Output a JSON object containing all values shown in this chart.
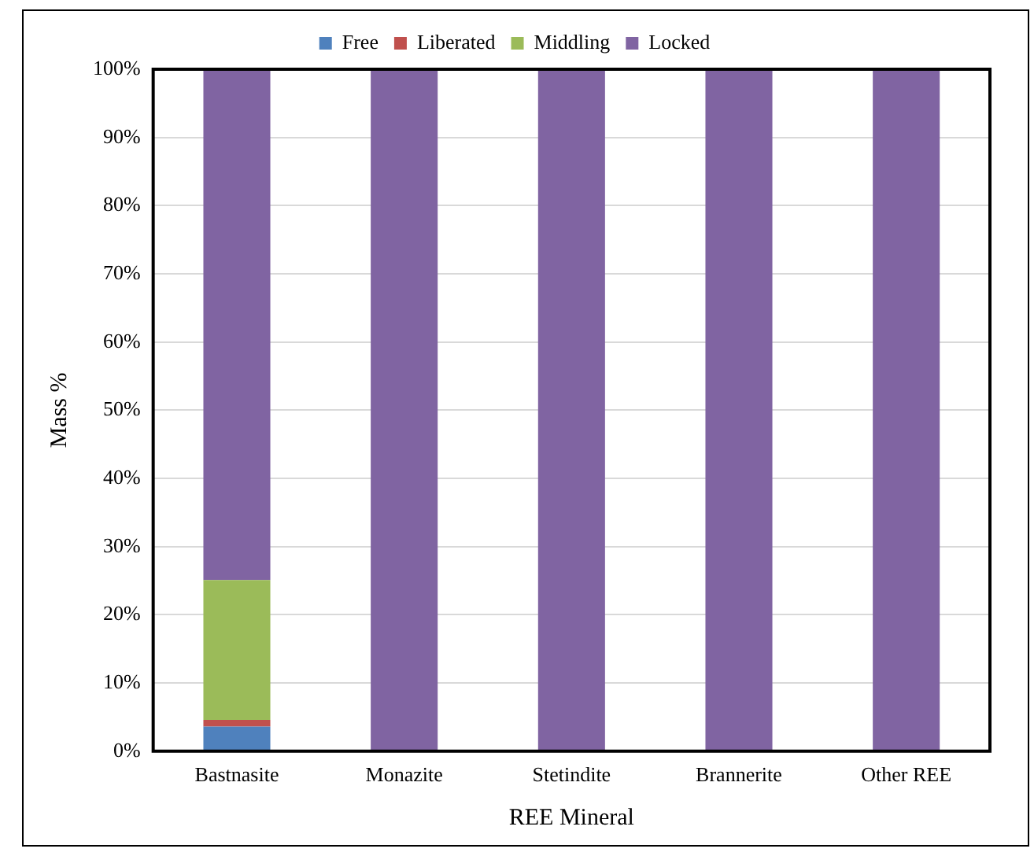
{
  "chart_data": {
    "type": "bar",
    "stacked": true,
    "xlabel": "REE Mineral",
    "ylabel": "Mass %",
    "categories": [
      "Bastnasite",
      "Monazite",
      "Stetindite",
      "Brannerite",
      "Other REE"
    ],
    "series": [
      {
        "name": "Free",
        "color": "#4f81bd",
        "values": [
          3.6,
          0,
          0,
          0,
          0
        ]
      },
      {
        "name": "Liberated",
        "color": "#c0504d",
        "values": [
          1,
          0,
          0,
          0,
          0
        ]
      },
      {
        "name": "Middling",
        "color": "#9bbb59",
        "values": [
          20.5,
          0,
          0,
          0,
          0
        ]
      },
      {
        "name": "Locked",
        "color": "#8064a2",
        "values": [
          74.9,
          100,
          100,
          100,
          100
        ]
      }
    ],
    "ylim": [
      0,
      100
    ],
    "yticks": [
      {
        "value": 0,
        "label": "0%"
      },
      {
        "value": 10,
        "label": "10%"
      },
      {
        "value": 20,
        "label": "20%"
      },
      {
        "value": 30,
        "label": "30%"
      },
      {
        "value": 40,
        "label": "40%"
      },
      {
        "value": 50,
        "label": "50%"
      },
      {
        "value": 60,
        "label": "60%"
      },
      {
        "value": 70,
        "label": "70%"
      },
      {
        "value": 80,
        "label": "80%"
      },
      {
        "value": 90,
        "label": "90%"
      },
      {
        "value": 100,
        "label": "100%"
      }
    ],
    "grid": "y",
    "legend": "top"
  }
}
